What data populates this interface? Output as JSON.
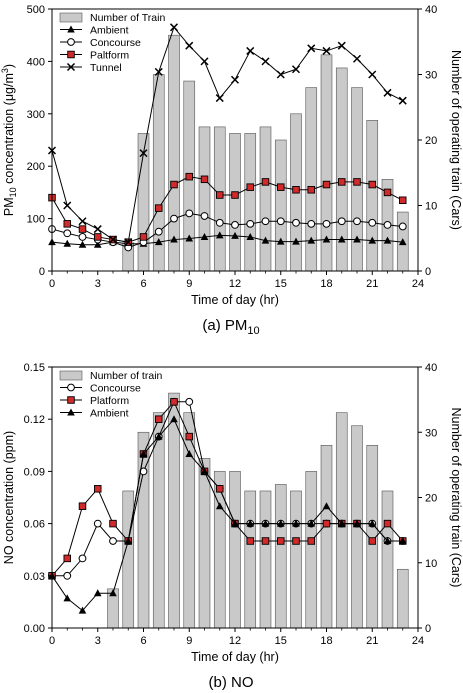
{
  "chart_data": [
    {
      "type": "bar+line",
      "caption": "(a) PM10",
      "xlabel": "Time of day (hr)",
      "ylabel_left": "PM10 concentration (μg/m3)",
      "ylabel_right": "Number of operating train (Cars)",
      "xlim": [
        0,
        24
      ],
      "ylim_left": [
        0,
        500
      ],
      "ylim_right": [
        0,
        40
      ],
      "xticks": [
        0,
        3,
        6,
        9,
        12,
        15,
        18,
        21,
        24
      ],
      "yticks_left": [
        0,
        100,
        200,
        300,
        400,
        500
      ],
      "yticks_right": [
        0,
        10,
        20,
        30,
        40
      ],
      "bars": {
        "name": "Number of Train",
        "axis": "right",
        "x": [
          5,
          6,
          7,
          8,
          9,
          10,
          11,
          12,
          13,
          14,
          15,
          16,
          17,
          18,
          19,
          20,
          21,
          22,
          23
        ],
        "values": [
          4.3,
          21,
          30,
          36,
          29,
          22,
          22,
          21,
          21,
          22,
          20,
          24,
          28,
          33,
          31,
          28,
          23,
          14,
          9
        ]
      },
      "series": [
        {
          "name": "Ambient",
          "marker": "triangle",
          "x": [
            0,
            1,
            2,
            3,
            4,
            5,
            6,
            7,
            8,
            9,
            10,
            11,
            12,
            13,
            14,
            15,
            16,
            17,
            18,
            19,
            20,
            21,
            22,
            23
          ],
          "values": [
            55,
            52,
            50,
            50,
            55,
            52,
            52,
            55,
            60,
            62,
            65,
            68,
            67,
            65,
            58,
            56,
            56,
            58,
            60,
            60,
            60,
            58,
            58,
            55
          ]
        },
        {
          "name": "Concourse",
          "marker": "circle",
          "x": [
            0,
            1,
            2,
            3,
            4,
            5,
            6,
            7,
            8,
            9,
            10,
            11,
            12,
            13,
            14,
            15,
            16,
            17,
            18,
            19,
            20,
            21,
            22,
            23
          ],
          "values": [
            80,
            72,
            65,
            60,
            55,
            45,
            55,
            75,
            100,
            110,
            105,
            92,
            88,
            90,
            95,
            95,
            92,
            90,
            90,
            95,
            95,
            92,
            88,
            85
          ]
        },
        {
          "name": "Paltform",
          "marker": "square",
          "x": [
            0,
            1,
            2,
            3,
            4,
            5,
            6,
            7,
            8,
            9,
            10,
            11,
            12,
            13,
            14,
            15,
            16,
            17,
            18,
            19,
            20,
            21,
            22,
            23
          ],
          "values": [
            140,
            90,
            80,
            65,
            60,
            55,
            65,
            120,
            165,
            180,
            175,
            145,
            145,
            160,
            170,
            160,
            155,
            155,
            165,
            170,
            170,
            165,
            150,
            135
          ]
        },
        {
          "name": "Tunnel",
          "marker": "x",
          "x": [
            0,
            1,
            2,
            3,
            4,
            5,
            6,
            7,
            8,
            9,
            10,
            11,
            12,
            13,
            14,
            15,
            16,
            17,
            18,
            19,
            20,
            21,
            22,
            23
          ],
          "values": [
            230,
            125,
            95,
            80,
            60,
            55,
            225,
            380,
            465,
            430,
            400,
            330,
            365,
            420,
            400,
            375,
            385,
            425,
            420,
            430,
            405,
            375,
            340,
            325
          ]
        }
      ]
    },
    {
      "type": "bar+line",
      "caption": "(b) NO",
      "xlabel": "Time of day (hr)",
      "ylabel_left": "NO concentration (ppm)",
      "ylabel_right": "Number of operating train (Cars)",
      "xlim": [
        0,
        24
      ],
      "ylim_left": [
        0,
        0.15
      ],
      "ylim_right": [
        0,
        40
      ],
      "xticks": [
        0,
        3,
        6,
        9,
        12,
        15,
        18,
        21,
        24
      ],
      "yticks_left": [
        "0.00",
        "0.03",
        "0.06",
        "0.09",
        "0.12",
        "0.15"
      ],
      "yticks_right": [
        0,
        10,
        20,
        30,
        40
      ],
      "bars": {
        "name": "Number of train",
        "axis": "right",
        "x": [
          4,
          5,
          6,
          7,
          8,
          9,
          10,
          11,
          12,
          13,
          14,
          15,
          16,
          17,
          18,
          19,
          20,
          21,
          22,
          23
        ],
        "values": [
          6,
          21,
          30,
          33,
          36,
          33,
          26,
          24,
          24,
          21,
          21,
          22,
          21,
          24,
          28,
          33,
          31,
          28,
          21,
          9
        ]
      },
      "series": [
        {
          "name": "Concourse",
          "marker": "circle",
          "x": [
            0,
            1,
            2,
            3,
            4,
            5,
            6,
            7,
            8,
            9,
            10,
            11,
            12,
            13,
            14,
            15,
            16,
            17,
            18,
            19,
            20,
            21,
            22,
            23
          ],
          "values": [
            0.03,
            0.03,
            0.04,
            0.06,
            0.05,
            0.05,
            0.09,
            0.11,
            0.13,
            0.13,
            0.09,
            0.08,
            0.06,
            0.06,
            0.06,
            0.06,
            0.06,
            0.06,
            0.06,
            0.06,
            0.06,
            0.06,
            0.05,
            0.05
          ]
        },
        {
          "name": "Platform",
          "marker": "square",
          "x": [
            0,
            1,
            2,
            3,
            4,
            5,
            6,
            7,
            8,
            9,
            10,
            11,
            12,
            13,
            14,
            15,
            16,
            17,
            18,
            19,
            20,
            21,
            22,
            23
          ],
          "values": [
            0.03,
            0.04,
            0.07,
            0.08,
            0.06,
            0.05,
            0.1,
            0.12,
            0.13,
            0.11,
            0.09,
            0.08,
            0.06,
            0.05,
            0.05,
            0.05,
            0.05,
            0.05,
            0.06,
            0.06,
            0.06,
            0.05,
            0.06,
            0.05
          ]
        },
        {
          "name": "Ambient",
          "marker": "triangle",
          "x": [
            0,
            1,
            2,
            3,
            4,
            5,
            6,
            7,
            8,
            9,
            10,
            11,
            12,
            13,
            14,
            15,
            16,
            17,
            18,
            19,
            20,
            21,
            22,
            23
          ],
          "values": [
            0.03,
            0.017,
            0.01,
            0.02,
            0.02,
            0.05,
            0.1,
            0.11,
            0.12,
            0.1,
            0.09,
            0.07,
            0.06,
            0.06,
            0.06,
            0.06,
            0.06,
            0.06,
            0.07,
            0.06,
            0.06,
            0.06,
            0.05,
            0.05
          ]
        }
      ]
    }
  ]
}
